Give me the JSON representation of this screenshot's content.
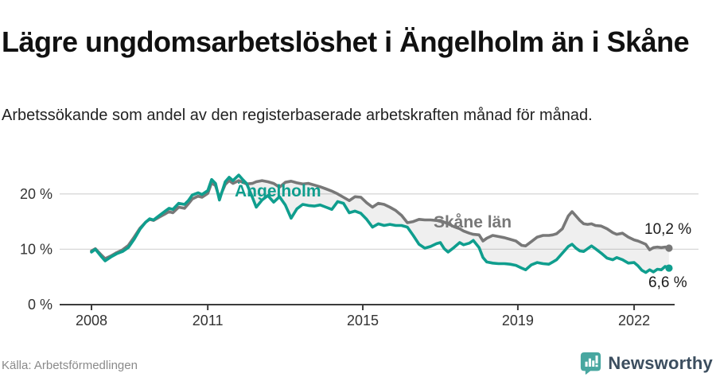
{
  "header": {
    "title": "Lägre ungdomsarbetslöshet i Ängelholm än i Skåne",
    "subtitle": "Arbetssökande som andel av den registerbaserade arbetskraften månad för månad."
  },
  "footer": {
    "source": "Källa: Arbetsförmedlingen",
    "brand_name": "Newsworthy",
    "brand_icon": "newsworthy-bar-chart-bubble"
  },
  "colors": {
    "angelholm": "#0f9e8e",
    "skane": "#787878",
    "grid": "#d8d8d8",
    "axis": "#3c3c3c",
    "tick_text": "#333333",
    "end_label_text": "#1a1a1a",
    "ribbon": "rgba(125,125,125,0.12)",
    "brand_icon": "#48a7a0",
    "brand_text": "#3c4e5f"
  },
  "chart_data": {
    "type": "line",
    "title": "Lägre ungdomsarbetslöshet i Ängelholm än i Skåne",
    "subtitle": "Arbetssökande som andel av den registerbaserade arbetskraften månad för månad.",
    "xlabel": "",
    "ylabel": "",
    "x_unit": "year (monthly data)",
    "y_unit": "%",
    "xlim": [
      2008,
      2023
    ],
    "ylim": [
      0,
      26
    ],
    "grid": "horizontal",
    "legend_position": "inline-labels",
    "x_ticks": [
      2008,
      2011,
      2015,
      2019,
      2022
    ],
    "y_ticks": [
      {
        "value": 0,
        "label": "0 %"
      },
      {
        "value": 10,
        "label": "10 %"
      },
      {
        "value": 20,
        "label": "20 %"
      }
    ],
    "x": [
      2008.0,
      2008.1,
      2008.25,
      2008.35,
      2008.5,
      2008.65,
      2008.8,
      2008.95,
      2009.1,
      2009.25,
      2009.4,
      2009.5,
      2009.6,
      2009.75,
      2009.9,
      2010.0,
      2010.1,
      2010.25,
      2010.4,
      2010.5,
      2010.6,
      2010.75,
      2010.85,
      2011.0,
      2011.1,
      2011.2,
      2011.3,
      2011.45,
      2011.55,
      2011.65,
      2011.8,
      2011.9,
      2012.0,
      2012.15,
      2012.25,
      2012.4,
      2012.55,
      2012.7,
      2012.85,
      2013.0,
      2013.15,
      2013.3,
      2013.45,
      2013.6,
      2013.75,
      2013.9,
      2014.05,
      2014.2,
      2014.35,
      2014.5,
      2014.65,
      2014.8,
      2014.95,
      2015.1,
      2015.25,
      2015.4,
      2015.55,
      2015.7,
      2015.85,
      2016.0,
      2016.15,
      2016.3,
      2016.45,
      2016.6,
      2016.75,
      2016.9,
      2017.0,
      2017.1,
      2017.2,
      2017.35,
      2017.5,
      2017.6,
      2017.75,
      2017.85,
      2018.0,
      2018.1,
      2018.2,
      2018.35,
      2018.5,
      2018.65,
      2018.8,
      2018.95,
      2019.1,
      2019.2,
      2019.35,
      2019.5,
      2019.65,
      2019.8,
      2019.9,
      2020.0,
      2020.15,
      2020.3,
      2020.4,
      2020.5,
      2020.6,
      2020.7,
      2020.8,
      2020.9,
      2021.0,
      2021.15,
      2021.3,
      2021.45,
      2021.55,
      2021.7,
      2021.85,
      2022.0,
      2022.1,
      2022.2,
      2022.3,
      2022.4,
      2022.5,
      2022.6,
      2022.7,
      2022.8,
      2022.9
    ],
    "series": [
      {
        "name": "Ängelholm",
        "color_key": "angelholm",
        "end_label": "6,6 %",
        "end_value": 6.6,
        "values": [
          9.5,
          10.0,
          8.7,
          7.9,
          8.6,
          9.2,
          9.6,
          10.3,
          11.8,
          13.6,
          14.9,
          15.5,
          15.3,
          16.1,
          16.9,
          17.4,
          17.2,
          18.3,
          18.1,
          18.8,
          19.8,
          20.2,
          19.9,
          20.6,
          22.6,
          21.9,
          18.9,
          22.2,
          23.0,
          22.4,
          23.4,
          22.6,
          21.9,
          19.4,
          17.6,
          18.9,
          19.7,
          18.5,
          19.5,
          18.0,
          15.6,
          17.3,
          18.1,
          17.9,
          17.8,
          18.0,
          17.6,
          17.2,
          18.6,
          18.3,
          16.6,
          16.9,
          16.5,
          15.4,
          14.0,
          14.6,
          14.3,
          14.5,
          14.3,
          14.3,
          14.0,
          12.5,
          10.9,
          10.2,
          10.5,
          11.0,
          11.2,
          10.1,
          9.5,
          10.3,
          11.2,
          10.8,
          11.1,
          11.6,
          10.3,
          8.5,
          7.7,
          7.5,
          7.4,
          7.4,
          7.3,
          7.1,
          6.6,
          6.3,
          7.2,
          7.6,
          7.4,
          7.3,
          7.7,
          8.1,
          9.3,
          10.5,
          10.9,
          10.2,
          9.7,
          9.6,
          10.1,
          10.6,
          10.1,
          9.3,
          8.4,
          8.1,
          8.5,
          8.1,
          7.5,
          7.6,
          7.0,
          6.2,
          5.8,
          6.3,
          5.9,
          6.4,
          6.3,
          6.9,
          6.6
        ]
      },
      {
        "name": "Skåne län",
        "color_key": "skane",
        "end_label": "10,2 %",
        "end_value": 10.2,
        "values": [
          9.7,
          10.1,
          9.0,
          8.3,
          8.8,
          9.4,
          9.9,
          10.7,
          12.2,
          13.8,
          14.9,
          15.4,
          15.2,
          15.8,
          16.4,
          16.8,
          16.6,
          17.6,
          17.4,
          18.2,
          19.1,
          19.6,
          19.4,
          20.1,
          22.0,
          21.5,
          19.3,
          21.7,
          22.4,
          21.9,
          22.4,
          22.1,
          21.8,
          21.9,
          22.2,
          22.4,
          22.2,
          21.9,
          21.2,
          22.1,
          22.3,
          22.0,
          21.8,
          21.9,
          21.6,
          21.3,
          20.9,
          20.5,
          20.0,
          19.4,
          18.8,
          19.5,
          19.4,
          18.4,
          17.6,
          18.3,
          18.1,
          17.6,
          17.0,
          16.1,
          14.8,
          15.0,
          15.4,
          15.3,
          15.3,
          15.2,
          15.2,
          14.9,
          14.6,
          14.1,
          13.7,
          13.3,
          12.9,
          12.7,
          12.6,
          11.5,
          12.0,
          12.5,
          12.3,
          12.1,
          11.8,
          11.5,
          10.7,
          10.6,
          11.4,
          12.2,
          12.5,
          12.5,
          12.6,
          12.8,
          13.7,
          16.0,
          16.8,
          16.0,
          15.2,
          14.6,
          14.5,
          14.6,
          14.3,
          14.2,
          13.7,
          13.0,
          12.7,
          12.9,
          12.2,
          11.7,
          11.5,
          11.2,
          10.9,
          9.9,
          10.3,
          10.4,
          10.3,
          10.4,
          10.2
        ]
      }
    ]
  }
}
